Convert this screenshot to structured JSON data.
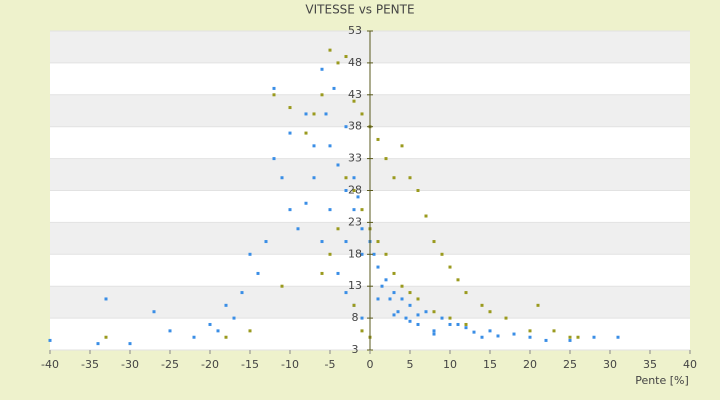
{
  "chart_data": {
    "type": "scatter",
    "title": "VITESSE vs PENTE",
    "xlabel": "Pente [%]",
    "xlim": [
      -40,
      40
    ],
    "xticks": [
      -40,
      -35,
      -30,
      -25,
      -20,
      -15,
      -10,
      -5,
      0,
      5,
      10,
      15,
      20,
      25,
      30,
      35,
      40
    ],
    "ylim": [
      3,
      53
    ],
    "yticks": [
      3,
      8,
      13,
      18,
      23,
      28,
      33,
      38,
      43,
      48,
      53
    ],
    "grid": true,
    "series": [
      {
        "color": "#3a8ee6",
        "x": [
          31,
          28,
          25,
          20,
          18,
          15,
          14,
          12,
          10,
          9,
          8,
          7,
          6,
          5,
          4,
          3,
          2,
          1,
          0,
          0.5,
          1.5,
          2.5,
          3.5,
          4.5,
          6,
          -1,
          -2,
          -3,
          -4,
          -5,
          -5.5,
          -4.5,
          -6,
          -3,
          -2,
          -1.5,
          -7,
          -8,
          -9,
          -10,
          -11,
          -12,
          -13,
          -14,
          -15,
          -16,
          -17,
          -18,
          -19,
          -20,
          -22,
          -25,
          -27,
          -30,
          -33,
          -34,
          -40,
          -6,
          -4,
          -3,
          -2,
          -1,
          1,
          3,
          5,
          8,
          11,
          13,
          16,
          22,
          -8,
          -7,
          -10,
          -12,
          -5,
          -3,
          -1
        ],
        "values": [
          5,
          5,
          4.5,
          5,
          5.5,
          6,
          5,
          6.5,
          7,
          8,
          6,
          9,
          8.5,
          10,
          11,
          12,
          14,
          16,
          20,
          18,
          13,
          11,
          9,
          8,
          7,
          22,
          25,
          28,
          32,
          35,
          40,
          44,
          47,
          38,
          30,
          27,
          30,
          26,
          22,
          25,
          30,
          33,
          20,
          15,
          18,
          12,
          8,
          10,
          6,
          7,
          5,
          6,
          9,
          4,
          11,
          4,
          4.5,
          20,
          15,
          12,
          10,
          8,
          11,
          8.5,
          7.5,
          5.5,
          7,
          5.8,
          5.2,
          4.5,
          40,
          35,
          37,
          44,
          25,
          20,
          18
        ]
      },
      {
        "color": "#9a9a1e",
        "x": [
          -5,
          -4,
          -3,
          -2,
          -1,
          0,
          1,
          2,
          3,
          4,
          5,
          6,
          7,
          8,
          9,
          10,
          11,
          12,
          14,
          15,
          17,
          20,
          23,
          26,
          -6,
          -7,
          -8,
          -10,
          -12,
          -3,
          -2,
          -1,
          0,
          1,
          2,
          3,
          4,
          5,
          6,
          8,
          10,
          12,
          -4,
          -5,
          -6,
          -2,
          0,
          -1,
          -33,
          -18,
          -15,
          -11,
          21,
          25
        ],
        "values": [
          50,
          48,
          49,
          42,
          40,
          38,
          36,
          33,
          30,
          35,
          30,
          28,
          24,
          20,
          18,
          16,
          14,
          12,
          10,
          9,
          8,
          6,
          6,
          5,
          43,
          40,
          37,
          41,
          43,
          30,
          28,
          25,
          22,
          20,
          18,
          15,
          13,
          12,
          11,
          9,
          8,
          7,
          22,
          18,
          15,
          10,
          5,
          6,
          5,
          5,
          6,
          13,
          10,
          5
        ]
      }
    ]
  }
}
